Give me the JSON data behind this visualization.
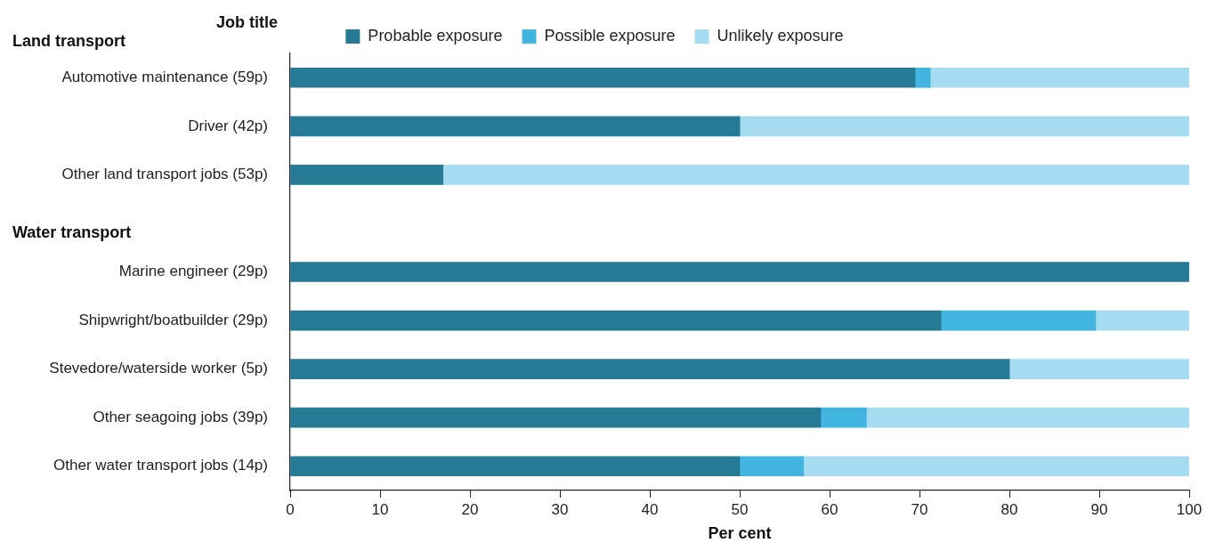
{
  "chart_data": {
    "type": "bar",
    "orientation": "horizontal",
    "stacked": true,
    "ylabel": "Job title",
    "xlabel": "Per cent",
    "annotations": [
      "Land transport",
      "Water transport"
    ],
    "categories": [
      "Automotive maintenance (59p)",
      "Driver (42p)",
      "Other land transport jobs (53p)",
      null,
      "Marine engineer (29p)",
      "Shipwright/boatbuilder (29p)",
      "Stevedore/waterside worker (5p)",
      "Other seagoing jobs (39p)",
      "Other water transport jobs (14p)"
    ],
    "series": [
      {
        "name": "Probable exposure",
        "color": "#267a96",
        "values": [
          69.5,
          50,
          17,
          null,
          100,
          72.4,
          80,
          59,
          50
        ]
      },
      {
        "name": "Possible exposure",
        "color": "#41b4e0",
        "values": [
          1.7,
          0,
          0,
          null,
          0,
          17.2,
          0,
          5.1,
          7.1
        ]
      },
      {
        "name": "Unlikely exposure",
        "color": "#a6dcf2",
        "values": [
          28.8,
          50,
          83,
          null,
          0,
          10.4,
          20,
          35.9,
          42.9
        ]
      }
    ],
    "xlim": [
      0,
      100
    ],
    "xticks": [
      0,
      10,
      20,
      30,
      40,
      50,
      60,
      70,
      80,
      90,
      100
    ],
    "grid": false,
    "legend": "top"
  }
}
